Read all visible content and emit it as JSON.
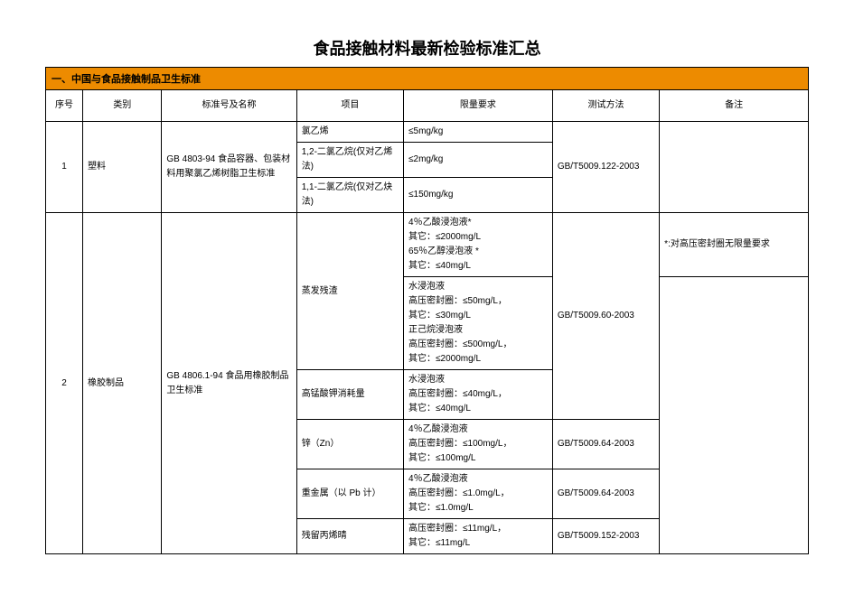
{
  "title": "食品接触材料最新检验标准汇总",
  "section_header": "一、中国与食品接触制品卫生标准",
  "columns": {
    "seq": "序号",
    "cat": "类别",
    "std": "标准号及名称",
    "item": "项目",
    "limit": "限量要求",
    "method": "测试方法",
    "note": "备注"
  },
  "row1": {
    "seq": "1",
    "cat": "塑料",
    "std": "GB 4803-94 食品容器、包装材料用聚氯乙烯树脂卫生标准",
    "items": {
      "a": "氯乙烯",
      "b": "1,2-二氯乙烷(仅对乙烯法)",
      "c": "1,1-二氯乙烷(仅对乙炔法)"
    },
    "limits": {
      "a": "≤5mg/kg",
      "b": "≤2mg/kg",
      "c": "≤150mg/kg"
    },
    "method": "GB/T5009.122-2003"
  },
  "row2": {
    "seq": "2",
    "cat": "橡胶制品",
    "std": "GB 4806.1-94 食品用橡胶制品卫生标准",
    "item_evap": "蒸发残渣",
    "limit_evap_a": "4％乙酸浸泡液*\n其它：≤2000mg/L\n65％乙醇浸泡液 *\n其它：≤40mg/L",
    "limit_evap_b": "水浸泡液\n高压密封圈：≤50mg/L，\n其它：≤30mg/L\n正己烷浸泡液\n高压密封圈：≤500mg/L，\n其它：≤2000mg/L",
    "method_evap": "GB/T5009.60-2003",
    "note_evap": "*:对高压密封圈无限量要求",
    "item_kmno4": "高锰酸钾消耗量",
    "limit_kmno4": "水浸泡液\n高压密封圈：≤40mg/L，\n其它：≤40mg/L",
    "item_zn": "锌（Zn）",
    "limit_zn": "4％乙酸浸泡液\n高压密封圈：≤100mg/L，\n其它：≤100mg/L",
    "method_zn": "GB/T5009.64-2003",
    "item_pb": "重金属（以 Pb 计）",
    "limit_pb": "4％乙酸浸泡液\n高压密封圈：≤1.0mg/L，\n其它：≤1.0mg/L",
    "method_pb": "GB/T5009.64-2003",
    "item_acn": "残留丙烯晴",
    "limit_acn": "高压密封圈：≤11mg/L，\n其它：≤11mg/L",
    "method_acn": "GB/T5009.152-2003"
  }
}
